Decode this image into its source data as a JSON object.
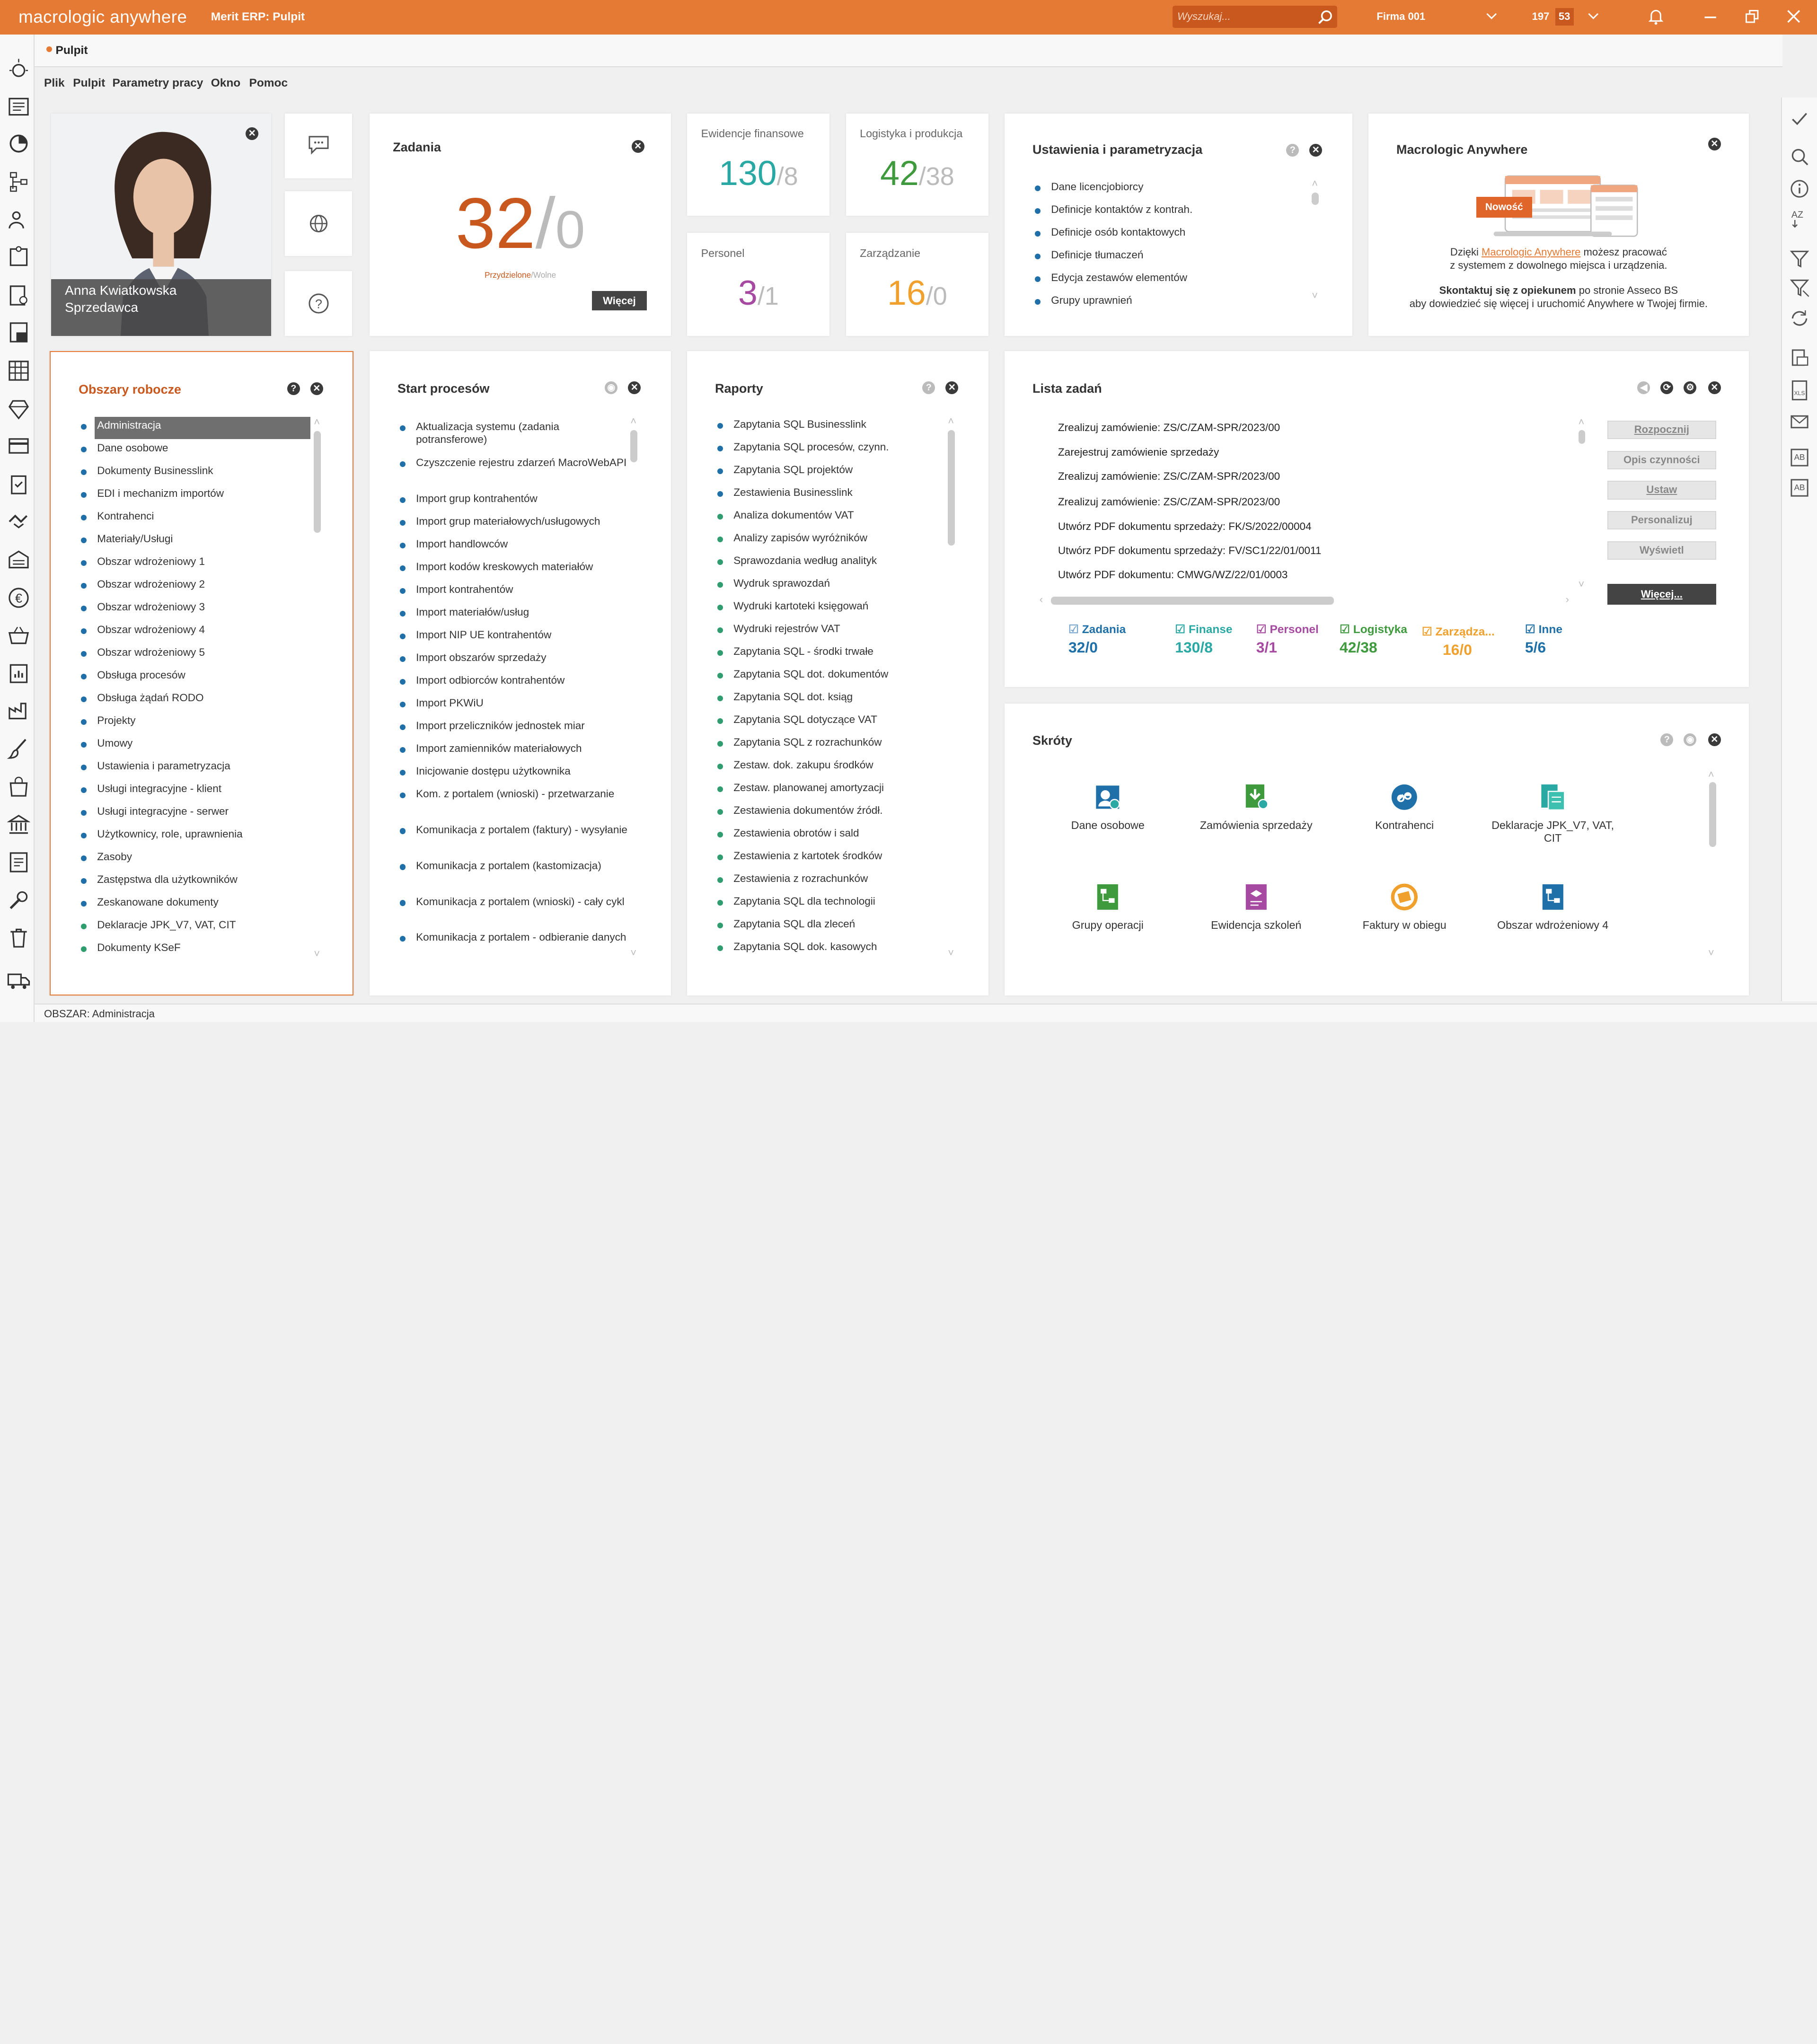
{
  "topbar": {
    "logo": "macrologic anywhere",
    "erp": "Merit ERP: Pulpit",
    "search_placeholder": "Wyszukaj...",
    "firm": "Firma 001",
    "count_a": "197",
    "count_b": "53"
  },
  "tabs": [
    {
      "label": "Pulpit"
    }
  ],
  "menu": [
    "Plik",
    "Pulpit",
    "Parametry pracy",
    "Okno",
    "Pomoc"
  ],
  "user": {
    "name": "Anna Kwiatkowska",
    "role": "Sprzedawca"
  },
  "zadania": {
    "title": "Zadania",
    "assigned": "32",
    "free": "0",
    "assigned_label": "Przydzielone",
    "free_label": "Wolne",
    "more": "Więcej"
  },
  "stats": [
    {
      "label": "Ewidencje finansowe",
      "a": "130",
      "b": "8",
      "color": "#2aa8a3"
    },
    {
      "label": "Logistyka i produkcja",
      "a": "42",
      "b": "38",
      "color": "#3e9a3c"
    },
    {
      "label": "Personel",
      "a": "3",
      "b": "1",
      "color": "#a64aa1"
    },
    {
      "label": "Zarządzanie",
      "a": "16",
      "b": "0",
      "color": "#f0a02c"
    }
  ],
  "ustawienia": {
    "title": "Ustawienia i parametryzacja",
    "items": [
      "Dane licencjobiorcy",
      "Definicje kontaktów z kontrah.",
      "Definicje osób kontaktowych",
      "Definicje tłumaczeń",
      "Edycja zestawów elementów",
      "Grupy uprawnień"
    ]
  },
  "anywhere": {
    "title": "Macrologic Anywhere",
    "badge": "Nowość",
    "line1a": "Dzięki ",
    "line1link": "Macrologic Anywhere",
    "line1b": " możesz pracować",
    "line2": "z systemem z dowolnego miejsca i urządzenia.",
    "line3bold": "Skontaktuj się z opiekunem",
    "line3": " po stronie Asseco BS",
    "line4": "aby dowiedzieć się więcej i uruchomić Anywhere w Twojej firmie."
  },
  "obszary": {
    "title": "Obszary robocze",
    "items": [
      "Administracja",
      "Dane osobowe",
      "Dokumenty Businesslink",
      "EDI i mechanizm importów",
      "Kontrahenci",
      "Materiały/Usługi",
      "Obszar wdrożeniowy 1",
      "Obszar wdrożeniowy 2",
      "Obszar wdrożeniowy 3",
      "Obszar wdrożeniowy 4",
      "Obszar wdrożeniowy 5",
      "Obsługa procesów",
      "Obsługa żądań RODO",
      "Projekty",
      "Umowy",
      "Ustawienia i parametryzacja",
      "Usługi integracyjne - klient",
      "Usługi integracyjne - serwer",
      "Użytkownicy, role, uprawnienia",
      "Zasoby",
      "Zastępstwa dla użytkowników",
      "Zeskanowane dokumenty",
      "Deklaracje JPK_V7, VAT, CIT",
      "Dokumenty KSeF"
    ]
  },
  "procesy": {
    "title": "Start procesów",
    "items": [
      "Aktualizacja systemu (zadania potransferowe)",
      "Czyszczenie rejestru zdarzeń MacroWebAPI",
      "Import grup kontrahentów",
      "Import grup materiałowych/usługowych",
      "Import handlowców",
      "Import kodów kreskowych materiałów",
      "Import kontrahentów",
      "Import materiałów/usług",
      "Import NIP UE kontrahentów",
      "Import obszarów sprzedaży",
      "Import odbiorców kontrahentów",
      "Import PKWiU",
      "Import przeliczników jednostek miar",
      "Import zamienników materiałowych",
      "Inicjowanie dostępu użytkownika",
      "Kom. z portalem (wnioski) - przetwarzanie",
      "Komunikacja z portalem (faktury) - wysyłanie",
      "Komunikacja z portalem (kastomizacja)",
      "Komunikacja z portalem (wnioski) - cały cykl",
      "Komunikacja z portalem - odbieranie danych"
    ]
  },
  "raporty": {
    "title": "Raporty",
    "items": [
      "Zapytania SQL Businesslink",
      "Zapytania SQL procesów, czynn.",
      "Zapytania SQL projektów",
      "Zestawienia Businesslink",
      "Analiza dokumentów VAT",
      "Analizy zapisów wyróżników",
      "Sprawozdania według analityk",
      "Wydruk sprawozdań",
      "Wydruki kartoteki księgowań",
      "Wydruki rejestrów VAT",
      "Zapytania SQL - środki trwałe",
      "Zapytania SQL dot. dokumentów",
      "Zapytania SQL dot. ksiąg",
      "Zapytania SQL dotyczące VAT",
      "Zapytania SQL z rozrachunków",
      "Zestaw. dok. zakupu środków",
      "Zestaw. planowanej amortyzacji",
      "Zestawienia dokumentów źródł.",
      "Zestawienia obrotów i sald",
      "Zestawienia z kartotek środków",
      "Zestawienia z rozrachunków",
      "Zapytania SQL dla technologii",
      "Zapytania SQL dla zleceń",
      "Zapytania SQL dok. kasowych"
    ]
  },
  "lista": {
    "title": "Lista zadań",
    "tasks": [
      "Zrealizuj zamówienie: ZS/C/ZAM-SPR/2023/00",
      "Zarejestruj zamówienie sprzedaży",
      "Zrealizuj zamówienie: ZS/C/ZAM-SPR/2023/00",
      "Zrealizuj zamówienie: ZS/C/ZAM-SPR/2023/00",
      "Utwórz PDF dokumentu sprzedaży: FK/S/2022/00004",
      "Utwórz PDF dokumentu sprzedaży: FV/SC1/22/01/0011",
      "Utwórz PDF dokumentu: CMWG/WZ/22/01/0003"
    ],
    "buttons": [
      "Rozpocznij",
      "Opis czynności",
      "Ustaw",
      "Personalizuj",
      "Wyświetl"
    ],
    "more": "Więcej...",
    "categories": [
      {
        "label": "Zadania",
        "val": "32/0",
        "color": "#1f6fa8"
      },
      {
        "label": "Finanse",
        "val": "130/8",
        "color": "#2aa8a3"
      },
      {
        "label": "Personel",
        "val": "3/1",
        "color": "#a64aa1"
      },
      {
        "label": "Logistyka",
        "val": "42/38",
        "color": "#3e9a3c"
      },
      {
        "label": "Zarządza...",
        "val": "16/0",
        "color": "#f0a02c"
      },
      {
        "label": "Inne",
        "val": "5/6",
        "color": "#1f6fa8"
      }
    ]
  },
  "skroty": {
    "title": "Skróty",
    "items": [
      "Dane osobowe",
      "Zamówienia sprzedaży",
      "Kontrahenci",
      "Deklaracje JPK_V7, VAT, CIT",
      "Grupy operacji",
      "Ewidencja szkoleń",
      "Faktury w obiegu",
      "Obszar wdrożeniowy 4"
    ]
  },
  "status": "OBSZAR: Administracja"
}
